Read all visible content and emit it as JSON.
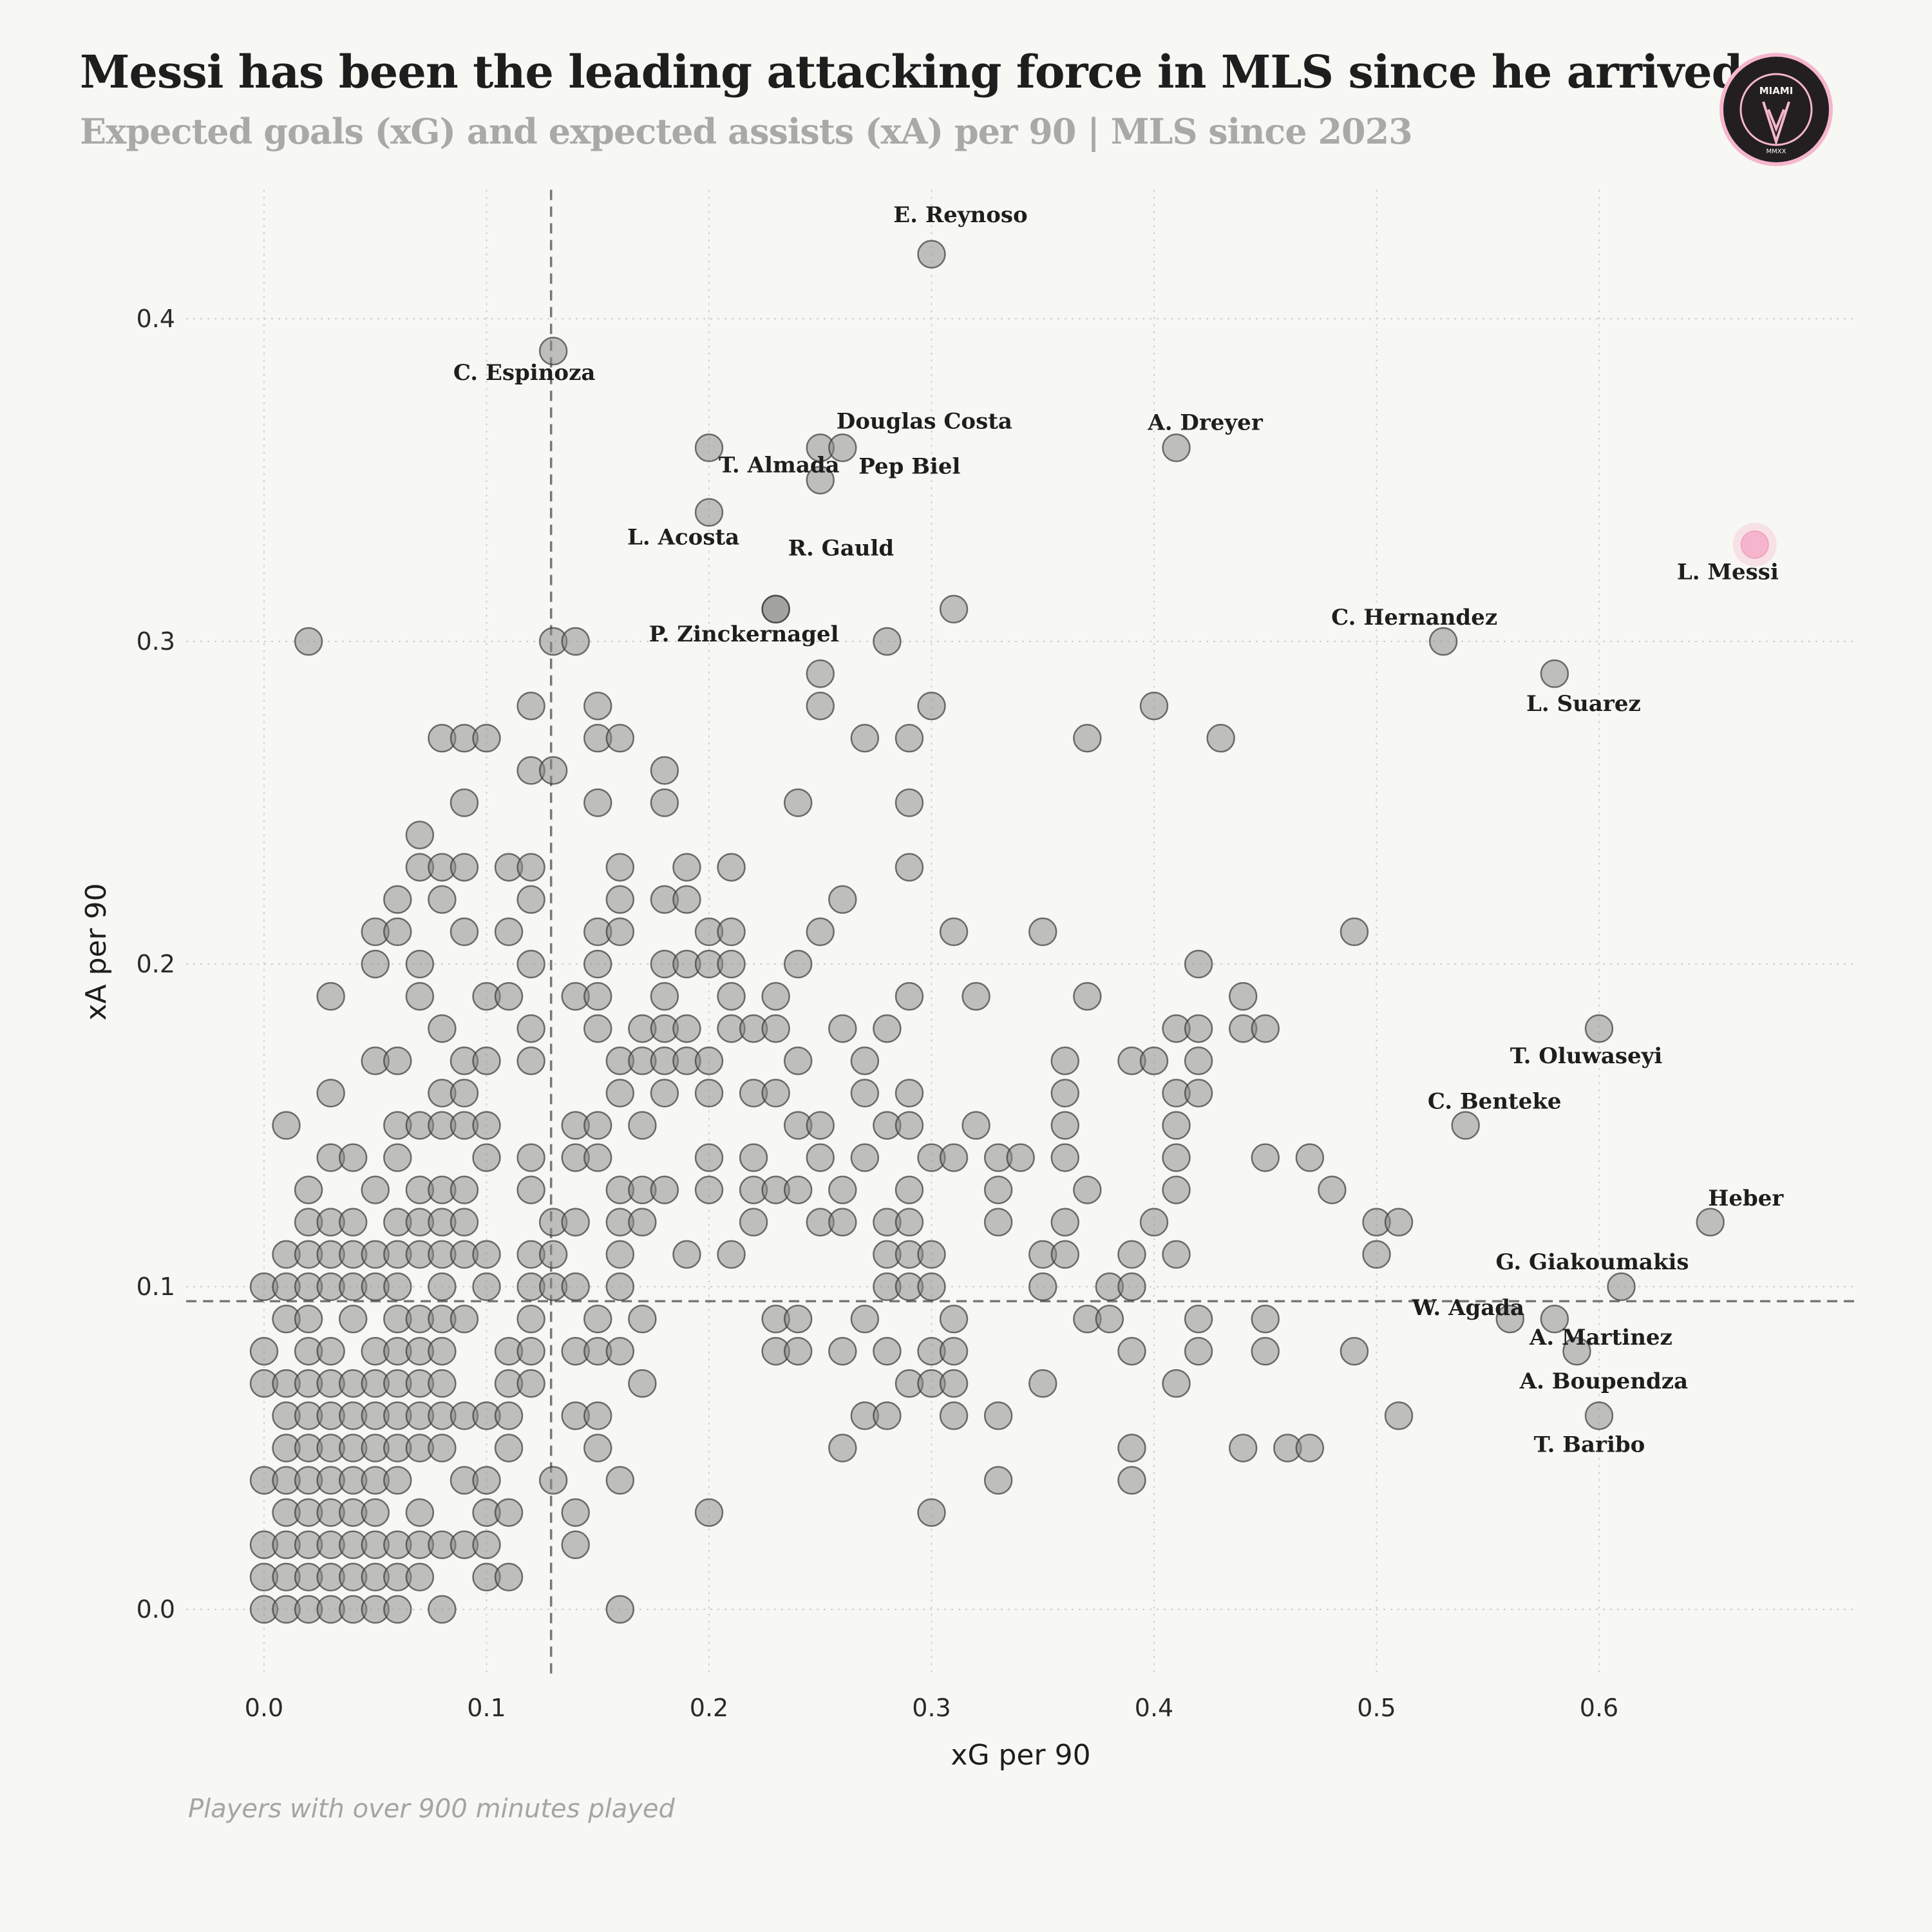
{
  "header": {
    "title": "Messi has been the leading attacking force in MLS since he arrived",
    "subtitle": "Expected goals (xG) and expected assists (xA) per 90 | MLS since 2023"
  },
  "logo": {
    "icon": "inter-miami-crest-icon",
    "text_main": "MIAMI",
    "text_ring": "CLUB INTERNACIONAL DE FUTBOL",
    "text_bottom": "MMXX",
    "accent": "#f5b6cd",
    "bg": "#231f20"
  },
  "footnote": "Players with over 900 minutes played",
  "chart_data": {
    "type": "scatter",
    "title": "Messi has been the leading attacking force in MLS since he arrived",
    "subtitle": "Expected goals (xG) and expected assists (xA) per 90 | MLS since 2023",
    "xlabel": "xG per 90",
    "ylabel": "xA per 90",
    "xlim": [
      -0.035,
      0.715
    ],
    "ylim": [
      -0.02,
      0.44
    ],
    "xticks": [
      "0.0",
      "0.1",
      "0.2",
      "0.3",
      "0.4",
      "0.5",
      "0.6"
    ],
    "yticks": [
      "0.0",
      "0.1",
      "0.2",
      "0.3",
      "0.4"
    ],
    "grid": true,
    "reference_lines": {
      "x_median": 0.129,
      "y_median": 0.0955
    },
    "colors": {
      "points": "#8a8a8a",
      "highlight": "#f5b6cd"
    },
    "highlight": {
      "name": "L. Messi",
      "x": 0.67,
      "y": 0.33
    },
    "labeled_points": [
      {
        "name": "E. Reynoso",
        "x": 0.3,
        "y": 0.42
      },
      {
        "name": "C. Espinoza",
        "x": 0.13,
        "y": 0.39
      },
      {
        "name": "T. Almada",
        "x": 0.2,
        "y": 0.36
      },
      {
        "name": "Douglas Costa",
        "x": 0.25,
        "y": 0.36
      },
      {
        "name": "Pep Biel",
        "x": 0.26,
        "y": 0.36
      },
      {
        "name": "R. Gauld",
        "x": 0.25,
        "y": 0.35
      },
      {
        "name": "L. Acosta",
        "x": 0.2,
        "y": 0.34
      },
      {
        "name": "P. Zinckernagel",
        "x": 0.23,
        "y": 0.31
      },
      {
        "name": "A. Dreyer",
        "x": 0.41,
        "y": 0.36
      },
      {
        "name": "C. Hernandez",
        "x": 0.53,
        "y": 0.3
      },
      {
        "name": "L. Suarez",
        "x": 0.58,
        "y": 0.29
      },
      {
        "name": "T. Oluwaseyi",
        "x": 0.6,
        "y": 0.18
      },
      {
        "name": "C. Benteke",
        "x": 0.54,
        "y": 0.15
      },
      {
        "name": "Heber",
        "x": 0.65,
        "y": 0.12
      },
      {
        "name": "G. Giakoumakis",
        "x": 0.61,
        "y": 0.1
      },
      {
        "name": "W. Agada",
        "x": 0.56,
        "y": 0.09
      },
      {
        "name": "A. Martinez",
        "x": 0.58,
        "y": 0.09
      },
      {
        "name": "A. Boupendza",
        "x": 0.59,
        "y": 0.08
      },
      {
        "name": "T. Baribo",
        "x": 0.6,
        "y": 0.06
      }
    ],
    "points": [
      [
        0.02,
        0.3
      ],
      [
        0.13,
        0.3
      ],
      [
        0.14,
        0.3
      ],
      [
        0.23,
        0.31
      ],
      [
        0.28,
        0.3
      ],
      [
        0.31,
        0.31
      ],
      [
        0.08,
        0.27
      ],
      [
        0.09,
        0.27
      ],
      [
        0.1,
        0.27
      ],
      [
        0.12,
        0.28
      ],
      [
        0.12,
        0.26
      ],
      [
        0.13,
        0.26
      ],
      [
        0.15,
        0.28
      ],
      [
        0.15,
        0.27
      ],
      [
        0.16,
        0.27
      ],
      [
        0.18,
        0.26
      ],
      [
        0.25,
        0.29
      ],
      [
        0.25,
        0.28
      ],
      [
        0.27,
        0.27
      ],
      [
        0.29,
        0.27
      ],
      [
        0.3,
        0.28
      ],
      [
        0.37,
        0.27
      ],
      [
        0.4,
        0.28
      ],
      [
        0.43,
        0.27
      ],
      [
        0.07,
        0.24
      ],
      [
        0.07,
        0.23
      ],
      [
        0.08,
        0.23
      ],
      [
        0.09,
        0.25
      ],
      [
        0.09,
        0.23
      ],
      [
        0.11,
        0.23
      ],
      [
        0.12,
        0.23
      ],
      [
        0.12,
        0.22
      ],
      [
        0.15,
        0.25
      ],
      [
        0.16,
        0.23
      ],
      [
        0.16,
        0.22
      ],
      [
        0.18,
        0.25
      ],
      [
        0.18,
        0.22
      ],
      [
        0.19,
        0.23
      ],
      [
        0.19,
        0.22
      ],
      [
        0.21,
        0.23
      ],
      [
        0.24,
        0.25
      ],
      [
        0.26,
        0.22
      ],
      [
        0.29,
        0.25
      ],
      [
        0.29,
        0.23
      ],
      [
        0.05,
        0.21
      ],
      [
        0.05,
        0.2
      ],
      [
        0.06,
        0.22
      ],
      [
        0.06,
        0.21
      ],
      [
        0.07,
        0.2
      ],
      [
        0.08,
        0.22
      ],
      [
        0.09,
        0.21
      ],
      [
        0.11,
        0.21
      ],
      [
        0.12,
        0.2
      ],
      [
        0.15,
        0.21
      ],
      [
        0.15,
        0.2
      ],
      [
        0.16,
        0.21
      ],
      [
        0.18,
        0.2
      ],
      [
        0.19,
        0.2
      ],
      [
        0.2,
        0.21
      ],
      [
        0.2,
        0.2
      ],
      [
        0.21,
        0.21
      ],
      [
        0.21,
        0.2
      ],
      [
        0.24,
        0.2
      ],
      [
        0.25,
        0.21
      ],
      [
        0.31,
        0.21
      ],
      [
        0.35,
        0.21
      ],
      [
        0.42,
        0.2
      ],
      [
        0.49,
        0.21
      ],
      [
        0.03,
        0.19
      ],
      [
        0.07,
        0.19
      ],
      [
        0.08,
        0.18
      ],
      [
        0.1,
        0.19
      ],
      [
        0.11,
        0.19
      ],
      [
        0.12,
        0.18
      ],
      [
        0.14,
        0.19
      ],
      [
        0.15,
        0.19
      ],
      [
        0.15,
        0.18
      ],
      [
        0.17,
        0.18
      ],
      [
        0.18,
        0.19
      ],
      [
        0.18,
        0.18
      ],
      [
        0.19,
        0.18
      ],
      [
        0.21,
        0.19
      ],
      [
        0.21,
        0.18
      ],
      [
        0.22,
        0.18
      ],
      [
        0.23,
        0.19
      ],
      [
        0.23,
        0.18
      ],
      [
        0.26,
        0.18
      ],
      [
        0.28,
        0.18
      ],
      [
        0.29,
        0.19
      ],
      [
        0.32,
        0.19
      ],
      [
        0.37,
        0.19
      ],
      [
        0.41,
        0.18
      ],
      [
        0.42,
        0.18
      ],
      [
        0.44,
        0.19
      ],
      [
        0.44,
        0.18
      ],
      [
        0.45,
        0.18
      ],
      [
        0.03,
        0.16
      ],
      [
        0.05,
        0.17
      ],
      [
        0.06,
        0.17
      ],
      [
        0.08,
        0.16
      ],
      [
        0.09,
        0.17
      ],
      [
        0.09,
        0.16
      ],
      [
        0.1,
        0.17
      ],
      [
        0.12,
        0.17
      ],
      [
        0.16,
        0.17
      ],
      [
        0.16,
        0.16
      ],
      [
        0.17,
        0.17
      ],
      [
        0.18,
        0.17
      ],
      [
        0.18,
        0.16
      ],
      [
        0.19,
        0.17
      ],
      [
        0.2,
        0.17
      ],
      [
        0.2,
        0.16
      ],
      [
        0.22,
        0.16
      ],
      [
        0.23,
        0.16
      ],
      [
        0.24,
        0.17
      ],
      [
        0.27,
        0.17
      ],
      [
        0.27,
        0.16
      ],
      [
        0.29,
        0.16
      ],
      [
        0.36,
        0.17
      ],
      [
        0.36,
        0.16
      ],
      [
        0.39,
        0.17
      ],
      [
        0.4,
        0.17
      ],
      [
        0.41,
        0.16
      ],
      [
        0.42,
        0.17
      ],
      [
        0.42,
        0.16
      ],
      [
        0.01,
        0.15
      ],
      [
        0.06,
        0.15
      ],
      [
        0.07,
        0.15
      ],
      [
        0.08,
        0.15
      ],
      [
        0.09,
        0.15
      ],
      [
        0.1,
        0.15
      ],
      [
        0.14,
        0.15
      ],
      [
        0.15,
        0.15
      ],
      [
        0.17,
        0.15
      ],
      [
        0.24,
        0.15
      ],
      [
        0.25,
        0.15
      ],
      [
        0.28,
        0.15
      ],
      [
        0.29,
        0.15
      ],
      [
        0.32,
        0.15
      ],
      [
        0.36,
        0.15
      ],
      [
        0.41,
        0.15
      ],
      [
        0.03,
        0.14
      ],
      [
        0.04,
        0.14
      ],
      [
        0.06,
        0.14
      ],
      [
        0.1,
        0.14
      ],
      [
        0.12,
        0.14
      ],
      [
        0.14,
        0.14
      ],
      [
        0.15,
        0.14
      ],
      [
        0.2,
        0.14
      ],
      [
        0.22,
        0.14
      ],
      [
        0.25,
        0.14
      ],
      [
        0.27,
        0.14
      ],
      [
        0.3,
        0.14
      ],
      [
        0.31,
        0.14
      ],
      [
        0.33,
        0.14
      ],
      [
        0.34,
        0.14
      ],
      [
        0.36,
        0.14
      ],
      [
        0.41,
        0.14
      ],
      [
        0.45,
        0.14
      ],
      [
        0.47,
        0.14
      ],
      [
        0.02,
        0.13
      ],
      [
        0.05,
        0.13
      ],
      [
        0.07,
        0.13
      ],
      [
        0.08,
        0.13
      ],
      [
        0.09,
        0.13
      ],
      [
        0.12,
        0.13
      ],
      [
        0.16,
        0.13
      ],
      [
        0.17,
        0.13
      ],
      [
        0.18,
        0.13
      ],
      [
        0.2,
        0.13
      ],
      [
        0.22,
        0.13
      ],
      [
        0.23,
        0.13
      ],
      [
        0.24,
        0.13
      ],
      [
        0.26,
        0.13
      ],
      [
        0.29,
        0.13
      ],
      [
        0.33,
        0.13
      ],
      [
        0.37,
        0.13
      ],
      [
        0.41,
        0.13
      ],
      [
        0.48,
        0.13
      ],
      [
        0.02,
        0.12
      ],
      [
        0.03,
        0.12
      ],
      [
        0.04,
        0.12
      ],
      [
        0.06,
        0.12
      ],
      [
        0.07,
        0.12
      ],
      [
        0.08,
        0.12
      ],
      [
        0.09,
        0.12
      ],
      [
        0.13,
        0.12
      ],
      [
        0.14,
        0.12
      ],
      [
        0.16,
        0.12
      ],
      [
        0.17,
        0.12
      ],
      [
        0.22,
        0.12
      ],
      [
        0.25,
        0.12
      ],
      [
        0.26,
        0.12
      ],
      [
        0.28,
        0.12
      ],
      [
        0.29,
        0.12
      ],
      [
        0.33,
        0.12
      ],
      [
        0.36,
        0.12
      ],
      [
        0.4,
        0.12
      ],
      [
        0.5,
        0.12
      ],
      [
        0.51,
        0.12
      ],
      [
        0.01,
        0.11
      ],
      [
        0.02,
        0.11
      ],
      [
        0.03,
        0.11
      ],
      [
        0.04,
        0.11
      ],
      [
        0.05,
        0.11
      ],
      [
        0.06,
        0.11
      ],
      [
        0.07,
        0.11
      ],
      [
        0.08,
        0.11
      ],
      [
        0.09,
        0.11
      ],
      [
        0.1,
        0.11
      ],
      [
        0.12,
        0.11
      ],
      [
        0.13,
        0.11
      ],
      [
        0.16,
        0.11
      ],
      [
        0.19,
        0.11
      ],
      [
        0.21,
        0.11
      ],
      [
        0.28,
        0.11
      ],
      [
        0.29,
        0.11
      ],
      [
        0.3,
        0.11
      ],
      [
        0.35,
        0.11
      ],
      [
        0.36,
        0.11
      ],
      [
        0.39,
        0.11
      ],
      [
        0.41,
        0.11
      ],
      [
        0.5,
        0.11
      ],
      [
        0.0,
        0.1
      ],
      [
        0.01,
        0.1
      ],
      [
        0.02,
        0.1
      ],
      [
        0.03,
        0.1
      ],
      [
        0.04,
        0.1
      ],
      [
        0.05,
        0.1
      ],
      [
        0.06,
        0.1
      ],
      [
        0.08,
        0.1
      ],
      [
        0.1,
        0.1
      ],
      [
        0.12,
        0.1
      ],
      [
        0.13,
        0.1
      ],
      [
        0.14,
        0.1
      ],
      [
        0.16,
        0.1
      ],
      [
        0.28,
        0.1
      ],
      [
        0.29,
        0.1
      ],
      [
        0.3,
        0.1
      ],
      [
        0.35,
        0.1
      ],
      [
        0.38,
        0.1
      ],
      [
        0.39,
        0.1
      ],
      [
        0.01,
        0.09
      ],
      [
        0.02,
        0.09
      ],
      [
        0.04,
        0.09
      ],
      [
        0.06,
        0.09
      ],
      [
        0.07,
        0.09
      ],
      [
        0.08,
        0.09
      ],
      [
        0.09,
        0.09
      ],
      [
        0.12,
        0.09
      ],
      [
        0.15,
        0.09
      ],
      [
        0.17,
        0.09
      ],
      [
        0.23,
        0.09
      ],
      [
        0.24,
        0.09
      ],
      [
        0.27,
        0.09
      ],
      [
        0.31,
        0.09
      ],
      [
        0.37,
        0.09
      ],
      [
        0.38,
        0.09
      ],
      [
        0.42,
        0.09
      ],
      [
        0.45,
        0.09
      ],
      [
        0.0,
        0.08
      ],
      [
        0.02,
        0.08
      ],
      [
        0.03,
        0.08
      ],
      [
        0.05,
        0.08
      ],
      [
        0.06,
        0.08
      ],
      [
        0.07,
        0.08
      ],
      [
        0.08,
        0.08
      ],
      [
        0.11,
        0.08
      ],
      [
        0.12,
        0.08
      ],
      [
        0.14,
        0.08
      ],
      [
        0.15,
        0.08
      ],
      [
        0.16,
        0.08
      ],
      [
        0.23,
        0.08
      ],
      [
        0.24,
        0.08
      ],
      [
        0.26,
        0.08
      ],
      [
        0.28,
        0.08
      ],
      [
        0.3,
        0.08
      ],
      [
        0.31,
        0.08
      ],
      [
        0.39,
        0.08
      ],
      [
        0.42,
        0.08
      ],
      [
        0.45,
        0.08
      ],
      [
        0.49,
        0.08
      ],
      [
        0.0,
        0.07
      ],
      [
        0.01,
        0.07
      ],
      [
        0.02,
        0.07
      ],
      [
        0.03,
        0.07
      ],
      [
        0.04,
        0.07
      ],
      [
        0.05,
        0.07
      ],
      [
        0.06,
        0.07
      ],
      [
        0.07,
        0.07
      ],
      [
        0.08,
        0.07
      ],
      [
        0.11,
        0.07
      ],
      [
        0.12,
        0.07
      ],
      [
        0.17,
        0.07
      ],
      [
        0.29,
        0.07
      ],
      [
        0.3,
        0.07
      ],
      [
        0.31,
        0.07
      ],
      [
        0.35,
        0.07
      ],
      [
        0.41,
        0.07
      ],
      [
        0.01,
        0.06
      ],
      [
        0.02,
        0.06
      ],
      [
        0.03,
        0.06
      ],
      [
        0.04,
        0.06
      ],
      [
        0.05,
        0.06
      ],
      [
        0.06,
        0.06
      ],
      [
        0.07,
        0.06
      ],
      [
        0.08,
        0.06
      ],
      [
        0.09,
        0.06
      ],
      [
        0.1,
        0.06
      ],
      [
        0.11,
        0.06
      ],
      [
        0.14,
        0.06
      ],
      [
        0.15,
        0.06
      ],
      [
        0.27,
        0.06
      ],
      [
        0.28,
        0.06
      ],
      [
        0.31,
        0.06
      ],
      [
        0.33,
        0.06
      ],
      [
        0.51,
        0.06
      ],
      [
        0.01,
        0.05
      ],
      [
        0.02,
        0.05
      ],
      [
        0.03,
        0.05
      ],
      [
        0.04,
        0.05
      ],
      [
        0.05,
        0.05
      ],
      [
        0.06,
        0.05
      ],
      [
        0.07,
        0.05
      ],
      [
        0.08,
        0.05
      ],
      [
        0.11,
        0.05
      ],
      [
        0.15,
        0.05
      ],
      [
        0.26,
        0.05
      ],
      [
        0.39,
        0.05
      ],
      [
        0.44,
        0.05
      ],
      [
        0.46,
        0.05
      ],
      [
        0.47,
        0.05
      ],
      [
        0.0,
        0.04
      ],
      [
        0.01,
        0.04
      ],
      [
        0.02,
        0.04
      ],
      [
        0.03,
        0.04
      ],
      [
        0.04,
        0.04
      ],
      [
        0.05,
        0.04
      ],
      [
        0.06,
        0.04
      ],
      [
        0.09,
        0.04
      ],
      [
        0.1,
        0.04
      ],
      [
        0.13,
        0.04
      ],
      [
        0.16,
        0.04
      ],
      [
        0.33,
        0.04
      ],
      [
        0.39,
        0.04
      ],
      [
        0.01,
        0.03
      ],
      [
        0.02,
        0.03
      ],
      [
        0.03,
        0.03
      ],
      [
        0.04,
        0.03
      ],
      [
        0.05,
        0.03
      ],
      [
        0.07,
        0.03
      ],
      [
        0.1,
        0.03
      ],
      [
        0.11,
        0.03
      ],
      [
        0.14,
        0.03
      ],
      [
        0.2,
        0.03
      ],
      [
        0.3,
        0.03
      ],
      [
        0.0,
        0.02
      ],
      [
        0.01,
        0.02
      ],
      [
        0.02,
        0.02
      ],
      [
        0.03,
        0.02
      ],
      [
        0.04,
        0.02
      ],
      [
        0.05,
        0.02
      ],
      [
        0.06,
        0.02
      ],
      [
        0.07,
        0.02
      ],
      [
        0.08,
        0.02
      ],
      [
        0.09,
        0.02
      ],
      [
        0.1,
        0.02
      ],
      [
        0.14,
        0.02
      ],
      [
        0.0,
        0.01
      ],
      [
        0.01,
        0.01
      ],
      [
        0.02,
        0.01
      ],
      [
        0.03,
        0.01
      ],
      [
        0.04,
        0.01
      ],
      [
        0.05,
        0.01
      ],
      [
        0.06,
        0.01
      ],
      [
        0.07,
        0.01
      ],
      [
        0.1,
        0.01
      ],
      [
        0.11,
        0.01
      ],
      [
        0.0,
        0.0
      ],
      [
        0.01,
        0.0
      ],
      [
        0.02,
        0.0
      ],
      [
        0.03,
        0.0
      ],
      [
        0.04,
        0.0
      ],
      [
        0.05,
        0.0
      ],
      [
        0.06,
        0.0
      ],
      [
        0.08,
        0.0
      ],
      [
        0.16,
        0.0
      ]
    ]
  }
}
